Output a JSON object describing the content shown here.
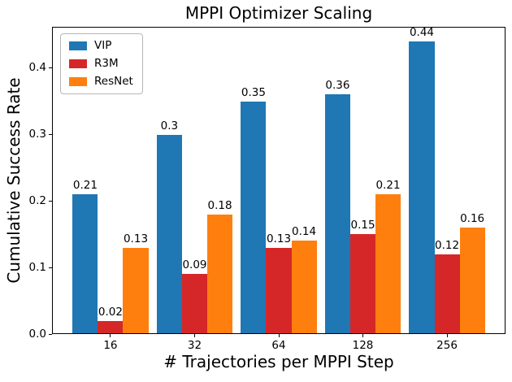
{
  "chart_data": {
    "type": "bar",
    "title": "MPPI Optimizer Scaling",
    "xlabel": "# Trajectories per MPPI Step",
    "ylabel": "Cumulative Success Rate",
    "categories": [
      "16",
      "32",
      "64",
      "128",
      "256"
    ],
    "series": [
      {
        "name": "VIP",
        "color": "#1f77b4",
        "values": [
          0.21,
          0.3,
          0.35,
          0.36,
          0.44
        ],
        "labels": [
          "0.21",
          "0.3",
          "0.35",
          "0.36",
          "0.44"
        ]
      },
      {
        "name": "R3M",
        "color": "#d62728",
        "values": [
          0.02,
          0.09,
          0.13,
          0.15,
          0.12
        ],
        "labels": [
          "0.02",
          "0.09",
          "0.13",
          "0.15",
          "0.12"
        ]
      },
      {
        "name": "ResNet",
        "color": "#ff7f0e",
        "values": [
          0.13,
          0.18,
          0.14,
          0.21,
          0.16
        ],
        "labels": [
          "0.13",
          "0.18",
          "0.14",
          "0.21",
          "0.16"
        ]
      }
    ],
    "ytick_labels": [
      "0.0",
      "0.1",
      "0.2",
      "0.3",
      "0.4"
    ],
    "ytick_values": [
      0.0,
      0.1,
      0.2,
      0.3,
      0.4
    ],
    "ylim": [
      0,
      0.462
    ],
    "xlim": [
      -0.695,
      4.695
    ],
    "bar_width": 0.3,
    "grid": false,
    "legend_position": "upper left",
    "frame_color": "#000000",
    "text_color": "#000000"
  }
}
